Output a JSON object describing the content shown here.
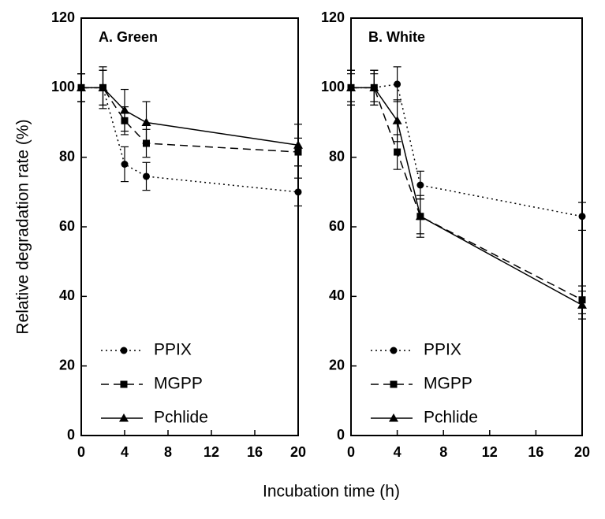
{
  "ylabel": "Relative degradation rate (%)",
  "xlabel": "Incubation time (h)",
  "chart_data": [
    {
      "type": "line",
      "title": "A. Green",
      "x": [
        0,
        2,
        4,
        6,
        20
      ],
      "xlim": [
        0,
        20
      ],
      "xticks": [
        0,
        4,
        8,
        12,
        16,
        20
      ],
      "ylim": [
        0,
        120
      ],
      "yticks": [
        0,
        20,
        40,
        60,
        80,
        100,
        120
      ],
      "legend": "lower left",
      "series": [
        {
          "name": "PPIX",
          "color": "#000000",
          "marker": "circle",
          "linestyle": "dotted",
          "values": [
            100,
            100,
            78,
            74.5,
            70
          ],
          "errors": [
            4,
            5,
            5,
            4,
            4
          ]
        },
        {
          "name": "MGPP",
          "color": "#000000",
          "marker": "square",
          "linestyle": "dashed",
          "values": [
            100,
            100,
            90.5,
            84,
            81.5
          ],
          "errors": [
            4,
            5,
            4,
            4,
            4
          ]
        },
        {
          "name": "Pchlide",
          "color": "#000000",
          "marker": "triangle",
          "linestyle": "solid",
          "values": [
            100,
            100,
            93.5,
            90,
            83.5
          ],
          "errors": [
            4,
            6,
            6,
            6,
            6
          ]
        }
      ]
    },
    {
      "type": "line",
      "title": "B. White",
      "x": [
        0,
        2,
        4,
        6,
        20
      ],
      "xlim": [
        0,
        20
      ],
      "xticks": [
        0,
        4,
        8,
        12,
        16,
        20
      ],
      "ylim": [
        0,
        120
      ],
      "yticks": [
        0,
        20,
        40,
        60,
        80,
        100,
        120
      ],
      "legend": "lower left",
      "series": [
        {
          "name": "PPIX",
          "color": "#000000",
          "marker": "circle",
          "linestyle": "dotted",
          "values": [
            100,
            100,
            101,
            72,
            63
          ],
          "errors": [
            4,
            4,
            5,
            4,
            4
          ]
        },
        {
          "name": "MGPP",
          "color": "#000000",
          "marker": "square",
          "linestyle": "dashed",
          "values": [
            100,
            100,
            81.5,
            63,
            39
          ],
          "errors": [
            5,
            5,
            5,
            5,
            4
          ]
        },
        {
          "name": "Pchlide",
          "color": "#000000",
          "marker": "triangle",
          "linestyle": "solid",
          "values": [
            100,
            100,
            90.5,
            63,
            37.5
          ],
          "errors": [
            5,
            5,
            6,
            6,
            4
          ]
        }
      ]
    }
  ]
}
